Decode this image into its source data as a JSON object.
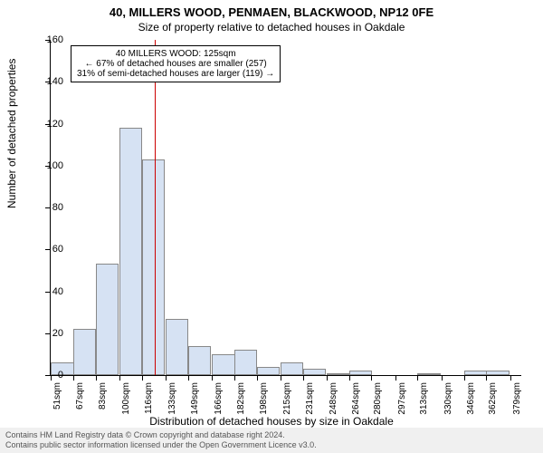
{
  "title_line1": "40, MILLERS WOOD, PENMAEN, BLACKWOOD, NP12 0FE",
  "title_line2": "Size of property relative to detached houses in Oakdale",
  "ylabel": "Number of detached properties",
  "xlabel": "Distribution of detached houses by size in Oakdale",
  "chart": {
    "type": "histogram",
    "xlim_min": 51,
    "xlim_max": 387,
    "bin_width": 16.5,
    "ylim_min": 0,
    "ylim_max": 160,
    "ytick_step": 20,
    "x_ticks": [
      51,
      67,
      83,
      100,
      116,
      133,
      149,
      166,
      182,
      198,
      215,
      231,
      248,
      264,
      280,
      297,
      313,
      330,
      346,
      362,
      379
    ],
    "x_tick_labels": [
      "51sqm",
      "67sqm",
      "83sqm",
      "100sqm",
      "116sqm",
      "133sqm",
      "149sqm",
      "166sqm",
      "182sqm",
      "198sqm",
      "215sqm",
      "231sqm",
      "248sqm",
      "264sqm",
      "280sqm",
      "297sqm",
      "313sqm",
      "330sqm",
      "346sqm",
      "362sqm",
      "379sqm"
    ],
    "values": [
      6,
      22,
      53,
      118,
      103,
      27,
      14,
      10,
      12,
      4,
      6,
      3,
      1,
      2,
      0,
      0,
      1,
      0,
      2,
      2
    ],
    "bar_fill": "#d6e2f3",
    "bar_border": "#888888",
    "axis_color": "#000000",
    "background_color": "#ffffff",
    "label_fontsize": 12,
    "tick_fontsize": 11,
    "xtick_fontsize": 10,
    "reference_x": 125,
    "reference_color": "#cc0000"
  },
  "annotation": {
    "line1": "40 MILLERS WOOD: 125sqm",
    "line2": "← 67% of detached houses are smaller (257)",
    "line3": "31% of semi-detached houses are larger (119) →",
    "border_color": "#000000",
    "background_color": "#ffffff",
    "fontsize": 10
  },
  "footer": {
    "line1": "Contains HM Land Registry data © Crown copyright and database right 2024.",
    "line2": "Contains public sector information licensed under the Open Government Licence v3.0.",
    "background_color": "#f0f0f0",
    "text_color": "#555555",
    "fontsize": 9
  }
}
